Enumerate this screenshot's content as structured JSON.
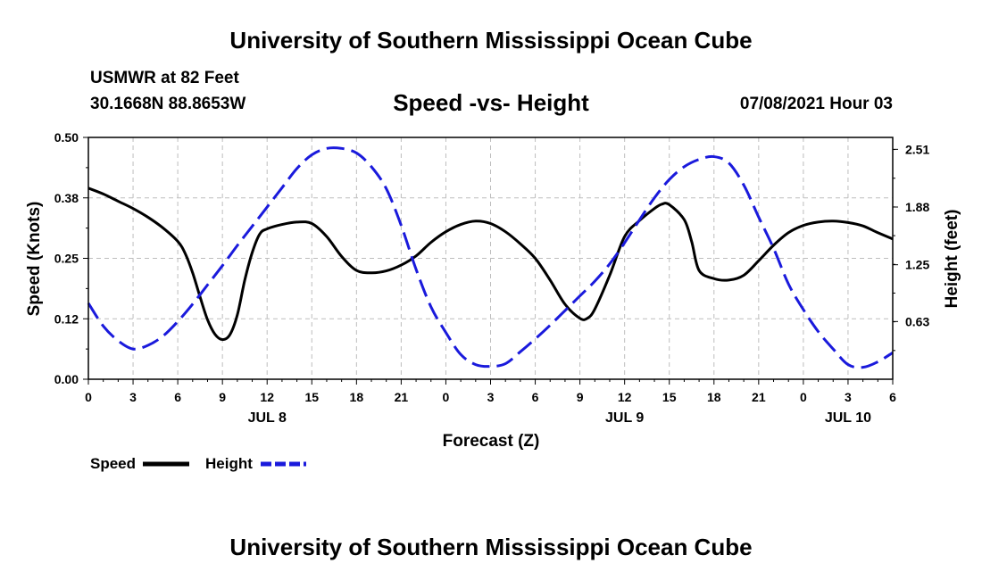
{
  "header": {
    "title": "University of Southern Mississippi Ocean Cube",
    "station": "USMWR at 82 Feet",
    "coords": "30.1668N  88.8653W",
    "subtitle": "Speed -vs- Height",
    "datestamp": "07/08/2021 Hour 03"
  },
  "footer": {
    "title": "University of Southern Mississippi Ocean Cube"
  },
  "colors": {
    "speed": "#000000",
    "height": "#1a1adc",
    "grid": "#bdbdbd"
  },
  "chart_data": {
    "type": "line",
    "title": "Speed -vs- Height",
    "xlabel": "Forecast (Z)",
    "ylabel": "Speed (Knots)",
    "y2label": "Height (feet)",
    "xlim": [
      0,
      54
    ],
    "ylim": [
      0,
      0.5
    ],
    "y2lim": [
      0,
      2.64
    ],
    "x_ticks": [
      0,
      3,
      6,
      9,
      12,
      15,
      18,
      21,
      24,
      27,
      30,
      33,
      36,
      39,
      42,
      45,
      48,
      51,
      54
    ],
    "x_tick_labels": [
      "0",
      "3",
      "6",
      "9",
      "12",
      "15",
      "18",
      "21",
      "0",
      "3",
      "6",
      "9",
      "12",
      "15",
      "18",
      "21",
      "0",
      "3",
      "6"
    ],
    "y_ticks": [
      0,
      0.125,
      0.25,
      0.375,
      0.5
    ],
    "y_tick_labels": [
      "0.00",
      "0.12",
      "0.25",
      "0.38",
      "0.50"
    ],
    "y2_ticks": [
      0.63,
      1.25,
      1.88,
      2.51
    ],
    "y2_tick_labels": [
      "0.63",
      "1.25",
      "1.88",
      "2.51"
    ],
    "day_labels": [
      {
        "x": 12,
        "label": "JUL 8"
      },
      {
        "x": 36,
        "label": "JUL 9"
      },
      {
        "x": 51,
        "label": "JUL 10"
      }
    ],
    "grid": true,
    "series": [
      {
        "name": "Speed",
        "axis": "left",
        "style": "solid",
        "x": [
          0,
          1,
          2,
          3,
          4,
          5,
          6,
          6.5,
          7,
          7.5,
          8,
          8.5,
          9,
          9.5,
          10,
          10.5,
          11,
          11.5,
          12,
          13,
          14,
          15,
          16,
          17,
          18,
          19,
          20,
          21,
          22,
          23,
          24,
          25,
          26,
          27,
          28,
          29,
          30,
          31,
          32,
          33,
          33.5,
          34,
          35,
          36,
          37,
          38,
          38.5,
          39,
          40,
          40.5,
          41,
          42,
          43,
          44,
          45,
          46,
          47,
          48,
          49,
          50,
          51,
          52,
          53,
          54
        ],
        "values": [
          0.395,
          0.383,
          0.368,
          0.353,
          0.335,
          0.313,
          0.285,
          0.26,
          0.22,
          0.17,
          0.123,
          0.093,
          0.082,
          0.092,
          0.133,
          0.205,
          0.262,
          0.3,
          0.311,
          0.32,
          0.325,
          0.322,
          0.295,
          0.254,
          0.225,
          0.22,
          0.224,
          0.236,
          0.255,
          0.283,
          0.305,
          0.32,
          0.327,
          0.322,
          0.305,
          0.28,
          0.25,
          0.205,
          0.155,
          0.126,
          0.126,
          0.145,
          0.215,
          0.295,
          0.328,
          0.353,
          0.362,
          0.361,
          0.33,
          0.285,
          0.225,
          0.208,
          0.205,
          0.215,
          0.245,
          0.277,
          0.303,
          0.318,
          0.325,
          0.327,
          0.324,
          0.317,
          0.303,
          0.29
        ]
      },
      {
        "name": "Height",
        "axis": "right",
        "style": "dashed",
        "x": [
          0,
          1,
          2,
          3,
          4,
          5,
          6,
          7,
          8,
          9,
          10,
          11,
          12,
          13,
          14,
          15,
          16,
          17,
          18,
          19,
          20,
          21,
          22,
          23,
          24,
          25,
          26,
          27,
          28,
          29,
          30,
          31,
          32,
          33,
          34,
          35,
          36,
          37,
          38,
          39,
          40,
          41,
          42,
          43,
          44,
          45,
          46,
          47,
          48,
          49,
          50,
          51,
          52,
          53,
          54
        ],
        "values": [
          0.83,
          0.58,
          0.42,
          0.33,
          0.37,
          0.47,
          0.63,
          0.82,
          1.03,
          1.24,
          1.46,
          1.67,
          1.88,
          2.09,
          2.3,
          2.45,
          2.52,
          2.52,
          2.47,
          2.32,
          2.08,
          1.68,
          1.2,
          0.79,
          0.51,
          0.27,
          0.16,
          0.14,
          0.17,
          0.3,
          0.44,
          0.59,
          0.75,
          0.91,
          1.07,
          1.26,
          1.49,
          1.74,
          1.98,
          2.18,
          2.32,
          2.4,
          2.43,
          2.36,
          2.12,
          1.77,
          1.43,
          1.04,
          0.76,
          0.52,
          0.33,
          0.16,
          0.13,
          0.19,
          0.29
        ]
      }
    ],
    "legend": [
      {
        "label": "Speed",
        "style": "solid"
      },
      {
        "label": "Height",
        "style": "dashed"
      }
    ]
  }
}
